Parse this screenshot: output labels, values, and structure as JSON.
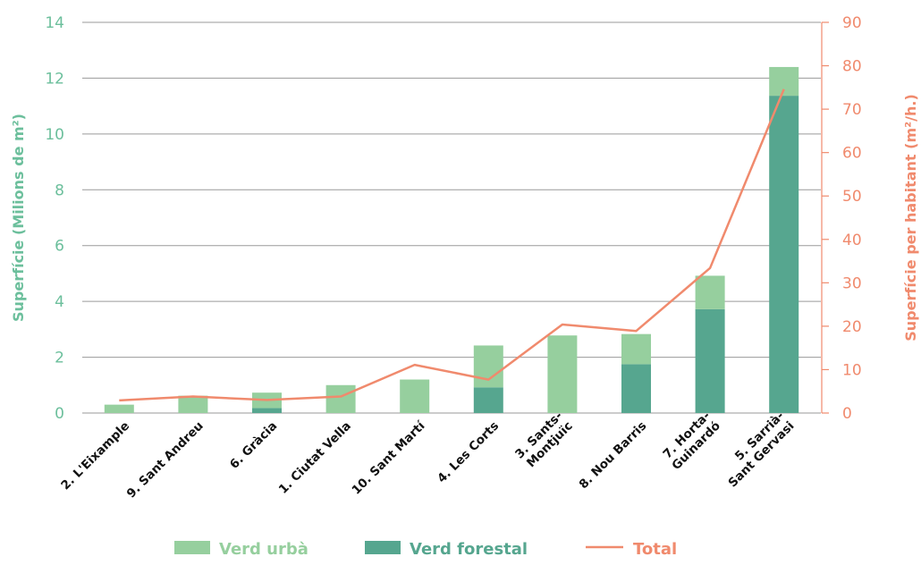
{
  "chart_data": {
    "type": "bar",
    "stacked": true,
    "categories": [
      "2. L'Eixample",
      "9. Sant Andreu",
      "6. Gràcia",
      "1. Ciutat Vella",
      "10. Sant Martí",
      "4. Les Corts",
      "3. Sants-\nMontjuïc",
      "8. Nou Barris",
      "7. Horta-\nGuinardó",
      "5. Sarrià-\nSant Gervasi"
    ],
    "series": [
      {
        "name": "Verd forestal",
        "axis": "left",
        "color": "#56a68f",
        "values": [
          0,
          0,
          0.18,
          0,
          0,
          0.92,
          0,
          1.75,
          3.72,
          11.37
        ]
      },
      {
        "name": "Verd urbà",
        "axis": "left",
        "color": "#96cf9e",
        "values": [
          0.3,
          0.62,
          0.55,
          1.0,
          1.2,
          1.5,
          2.78,
          1.08,
          1.2,
          1.03
        ]
      },
      {
        "name": "Total",
        "axis": "right",
        "type": "line",
        "color": "#f08a6d",
        "values": [
          2.9,
          3.8,
          3.0,
          3.8,
          11.1,
          7.7,
          20.4,
          18.9,
          33.4,
          74.6
        ]
      }
    ],
    "left_axis": {
      "label": "Superfície (Milions de m²)",
      "ylim": [
        0,
        14
      ],
      "ticks": [
        "0",
        "2",
        "4",
        "6",
        "8",
        "10",
        "12",
        "14"
      ],
      "color": "#6cbf9c"
    },
    "right_axis": {
      "label": "Superfície per habitant (m²/h.)",
      "ylim": [
        0,
        90
      ],
      "ticks": [
        "0",
        "10",
        "20",
        "30",
        "40",
        "50",
        "60",
        "70",
        "80",
        "90"
      ],
      "color": "#f08a6d"
    },
    "grid": true,
    "legend_position": "bottom",
    "legend": [
      {
        "label": "Verd urbà",
        "kind": "bar",
        "color": "#96cf9e"
      },
      {
        "label": "Verd forestal",
        "kind": "bar",
        "color": "#56a68f"
      },
      {
        "label": "Total",
        "kind": "line",
        "color": "#f08a6d"
      }
    ]
  }
}
